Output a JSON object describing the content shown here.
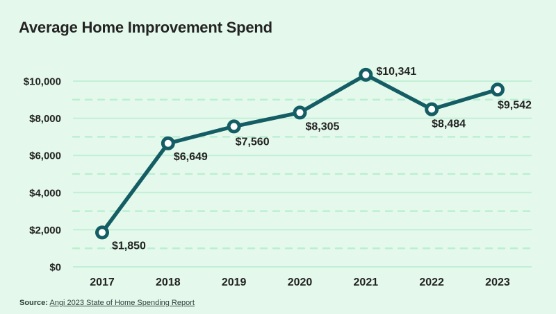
{
  "title": "Average Home Improvement Spend",
  "source": {
    "prefix": "Source:",
    "link_text": "Angi 2023 State of Home Spending Report"
  },
  "colors": {
    "background": "#e4f9ec",
    "line": "#145d64",
    "marker_fill": "#ffffff",
    "grid_major": "#c2efd6",
    "grid_minor": "#bceed2",
    "text": "#232323",
    "source_text": "#2e3e3c"
  },
  "chart_data": {
    "type": "line",
    "title": "Average Home Improvement Spend",
    "categories": [
      "2017",
      "2018",
      "2019",
      "2020",
      "2021",
      "2022",
      "2023"
    ],
    "values": [
      1850,
      6649,
      7560,
      8305,
      10341,
      8484,
      9542
    ],
    "point_labels": [
      "$1,850",
      "$6,649",
      "$7,560",
      "$8,305",
      "$10,341",
      "$8,484",
      "$9,542"
    ],
    "xlabel": "",
    "ylabel": "",
    "ylim": [
      0,
      10000
    ],
    "yticks": [
      0,
      2000,
      4000,
      6000,
      8000,
      10000
    ],
    "ytick_labels": [
      "$0",
      "$2,000",
      "$4,000",
      "$6,000",
      "$8,000",
      "$10,000"
    ],
    "minor_gridlines": [
      1000,
      3000,
      5000,
      7000,
      9000
    ],
    "grid": "solid major horizontal, dashed minor horizontal",
    "legend": "none",
    "marker": "open-circle"
  }
}
